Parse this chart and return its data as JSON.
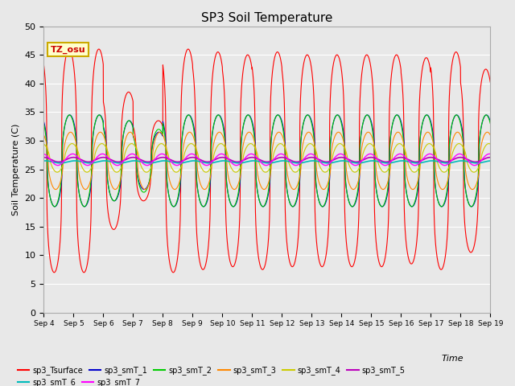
{
  "title": "SP3 Soil Temperature",
  "ylabel": "Soil Temperature (C)",
  "xlabel": "Time",
  "ylim": [
    0,
    50
  ],
  "yticks": [
    0,
    5,
    10,
    15,
    20,
    25,
    30,
    35,
    40,
    45,
    50
  ],
  "x_tick_labels": [
    "Sep 4",
    "Sep 5",
    "Sep 6",
    "Sep 7",
    "Sep 8",
    "Sep 9",
    "Sep 10",
    "Sep 11",
    "Sep 12",
    "Sep 13",
    "Sep 14",
    "Sep 15",
    "Sep 16",
    "Sep 17",
    "Sep 18",
    "Sep 19"
  ],
  "plot_bg_color": "#e8e8e8",
  "fig_bg_color": "#e8e8e8",
  "legend_entries": [
    "sp3_Tsurface",
    "sp3_smT_1",
    "sp3_smT_2",
    "sp3_smT_3",
    "sp3_smT_4",
    "sp3_smT_5",
    "sp3_smT_6",
    "sp3_smT_7"
  ],
  "line_colors": [
    "#ff0000",
    "#0000cc",
    "#00cc00",
    "#ff8800",
    "#cccc00",
    "#bb00bb",
    "#00bbbb",
    "#ff00ff"
  ],
  "annotation_text": "TZ_osu",
  "annotation_color": "#cc0000",
  "annotation_bg": "#ffffcc",
  "annotation_border": "#ccaa00",
  "n_days": 15,
  "pts_per_day": 480
}
